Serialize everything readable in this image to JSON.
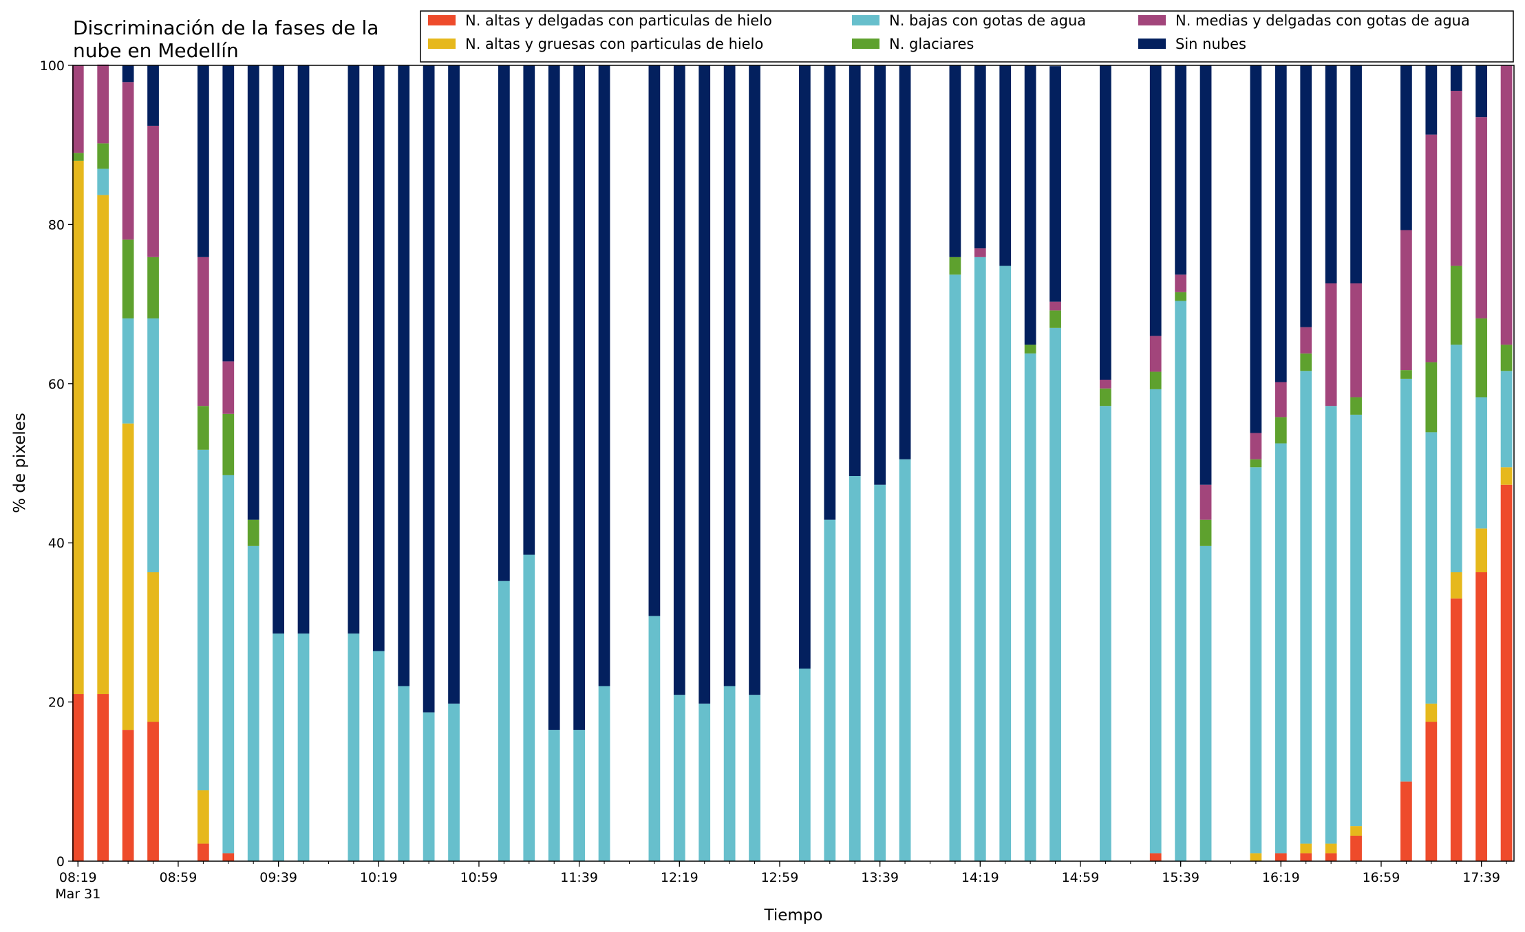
{
  "chart_data": {
    "type": "bar",
    "stacked": true,
    "title_lines": [
      "Discriminación de la fases de la",
      "nube en Medellín"
    ],
    "xlabel": "Tiempo",
    "ylabel": "% de pixeles",
    "ylim": [
      0,
      100
    ],
    "yticks": [
      "0",
      "20",
      "40",
      "60",
      "80",
      "100"
    ],
    "xlim_minutes": [
      497,
      1072
    ],
    "x_tick_labels": [
      {
        "time": "08:19",
        "sub": "Mar 31"
      },
      {
        "time": "08:59"
      },
      {
        "time": "09:39"
      },
      {
        "time": "10:19"
      },
      {
        "time": "10:59"
      },
      {
        "time": "11:39"
      },
      {
        "time": "12:19"
      },
      {
        "time": "12:59"
      },
      {
        "time": "13:39"
      },
      {
        "time": "14:19"
      },
      {
        "time": "14:59"
      },
      {
        "time": "15:39"
      },
      {
        "time": "16:19"
      },
      {
        "time": "16:59"
      },
      {
        "time": "17:39"
      }
    ],
    "legend_position": "top-right",
    "grid": false,
    "x": [
      "08:19",
      "08:29",
      "08:39",
      "08:49",
      "09:09",
      "09:19",
      "09:29",
      "09:39",
      "09:49",
      "10:09",
      "10:19",
      "10:29",
      "10:39",
      "10:49",
      "11:09",
      "11:19",
      "11:29",
      "11:39",
      "11:49",
      "12:09",
      "12:19",
      "12:29",
      "12:39",
      "12:49",
      "13:09",
      "13:19",
      "13:29",
      "13:39",
      "13:49",
      "14:09",
      "14:19",
      "14:29",
      "14:39",
      "14:49",
      "15:09",
      "15:29",
      "15:39",
      "15:49",
      "16:09",
      "16:19",
      "16:29",
      "16:39",
      "16:49",
      "17:09",
      "17:19",
      "17:29",
      "17:39",
      "17:49"
    ],
    "series": [
      {
        "name": "N. altas y delgadas con particulas de hielo",
        "color": "#ee4b2b",
        "values": [
          21,
          21,
          16.5,
          17.5,
          2.2,
          1.0,
          0,
          0,
          0,
          0,
          0,
          0,
          0,
          0,
          0,
          0,
          0,
          0,
          0,
          0,
          0,
          0,
          0,
          0,
          0,
          0,
          0,
          0,
          0,
          0,
          0,
          0,
          0,
          0,
          0,
          1.0,
          0,
          0,
          0,
          1.0,
          1.0,
          1.0,
          3.2,
          10,
          17.5,
          33,
          36.3,
          47.3
        ]
      },
      {
        "name": "N. altas y gruesas con particulas de hielo",
        "color": "#e6b81c",
        "values": [
          67,
          62.7,
          38.5,
          18.8,
          6.7,
          0,
          0,
          0,
          0,
          0,
          0,
          0,
          0,
          0,
          0,
          0,
          0,
          0,
          0,
          0,
          0,
          0,
          0,
          0,
          0,
          0,
          0,
          0,
          0,
          0,
          0,
          0,
          0,
          0,
          0,
          0,
          0,
          0,
          1.0,
          0,
          1.2,
          1.2,
          1.2,
          0,
          2.3,
          3.3,
          5.5,
          2.2
        ]
      },
      {
        "name": "N. bajas con gotas de agua",
        "color": "#67bfcc",
        "values": [
          0,
          3.3,
          13.2,
          31.9,
          42.8,
          47.5,
          39.6,
          28.6,
          28.6,
          28.6,
          26.4,
          22.0,
          18.7,
          19.8,
          35.2,
          38.5,
          16.5,
          16.5,
          22.0,
          30.8,
          20.9,
          19.8,
          22.0,
          20.9,
          24.2,
          42.9,
          48.4,
          47.3,
          50.5,
          73.7,
          75.9,
          74.8,
          63.8,
          67.0,
          57.2,
          58.3,
          70.4,
          39.6,
          48.5,
          51.5,
          59.4,
          55.0,
          51.7,
          50.6,
          34.1,
          28.6,
          16.5,
          12.1
        ]
      },
      {
        "name": "N. glaciares",
        "color": "#5ea12e",
        "values": [
          1.0,
          3.2,
          9.9,
          7.7,
          5.5,
          7.7,
          3.3,
          0,
          0,
          0,
          0,
          0,
          0,
          0,
          0,
          0,
          0,
          0,
          0,
          0,
          0,
          0,
          0,
          0,
          0,
          0,
          0,
          0,
          0,
          2.2,
          0,
          0,
          1.1,
          2.2,
          2.2,
          2.2,
          1.1,
          3.3,
          1.0,
          3.3,
          2.2,
          0,
          2.2,
          1.1,
          8.8,
          9.9,
          9.9,
          3.3
        ]
      },
      {
        "name": "N. medias y delgadas con gotas de agua",
        "color": "#a2457b",
        "values": [
          11,
          9.9,
          19.8,
          16.5,
          18.7,
          6.6,
          0,
          0,
          0,
          0,
          0,
          0,
          0,
          0,
          0,
          0,
          0,
          0,
          0,
          0,
          0,
          0,
          0,
          0,
          0,
          0,
          0,
          0,
          0,
          0,
          1.1,
          0,
          0,
          1.1,
          1.1,
          4.5,
          2.2,
          4.4,
          3.3,
          4.4,
          3.3,
          15.4,
          14.3,
          17.6,
          28.6,
          22.0,
          25.3,
          35.1
        ]
      },
      {
        "name": "Sin nubes",
        "color": "#03205e",
        "values": [
          0,
          0,
          2.1,
          7.6,
          24.1,
          37.2,
          57.1,
          71.4,
          71.4,
          71.4,
          73.6,
          78.0,
          81.3,
          80.2,
          64.8,
          61.5,
          83.5,
          83.5,
          78.0,
          69.2,
          79.1,
          80.2,
          78.0,
          79.1,
          75.8,
          57.1,
          51.6,
          52.7,
          49.5,
          24.1,
          23.0,
          25.2,
          35.1,
          29.6,
          39.5,
          34.0,
          26.3,
          52.7,
          46.2,
          39.8,
          32.9,
          27.4,
          27.4,
          20.7,
          8.7,
          3.2,
          6.5,
          0
        ]
      }
    ]
  }
}
